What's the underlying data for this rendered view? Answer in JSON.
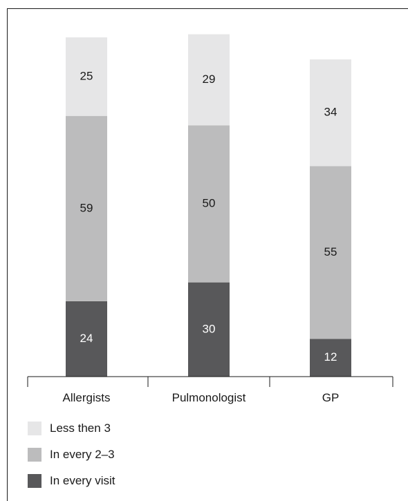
{
  "chart_data": {
    "type": "bar",
    "stacked": true,
    "orientation": "vertical",
    "categories": [
      "Allergists",
      "Pulmonologist",
      "GP"
    ],
    "series": [
      {
        "name": "In every visit",
        "values": [
          24,
          30,
          12
        ],
        "color": "#58585a",
        "label_color": "#ffffff"
      },
      {
        "name": "In every 2–3",
        "values": [
          59,
          50,
          55
        ],
        "color": "#bcbcbd",
        "label_color": "#1a1a1a"
      },
      {
        "name": "Less then 3",
        "values": [
          25,
          29,
          34
        ],
        "color": "#e6e6e7",
        "label_color": "#1a1a1a"
      }
    ],
    "ylim": [
      0,
      110
    ],
    "grid": false,
    "legend_position": "bottom-left"
  }
}
